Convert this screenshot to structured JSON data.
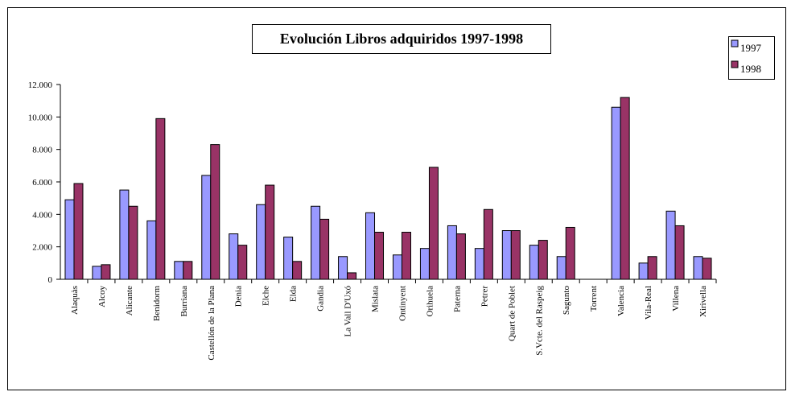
{
  "chart_data": {
    "type": "bar",
    "title": "Evolución Libros adquiridos 1997-1998",
    "categories": [
      "Alaquàs",
      "Alcoy",
      "Alicante",
      "Benidorm",
      "Burriana",
      "Castellón de la Plana",
      "Denia",
      "Elche",
      "Elda",
      "Gandia",
      "La Vall D'Uxó",
      "Mislata",
      "Ontinyent",
      "Orihuela",
      "Paterna",
      "Petrer",
      "Quart de Poblet",
      "S.Vcte. del Raspeig",
      "Sagunto",
      "Torrent",
      "Valencia",
      "Vila-Real",
      "Villena",
      "Xirivella"
    ],
    "series": [
      {
        "name": "1997",
        "color": "#9999ff",
        "values": [
          4900,
          800,
          5500,
          3600,
          1100,
          6400,
          2800,
          4600,
          2600,
          4500,
          1400,
          4100,
          1500,
          1900,
          3300,
          1900,
          3000,
          2100,
          1400,
          0,
          10600,
          1000,
          4200,
          1400
        ]
      },
      {
        "name": "1998",
        "color": "#993366",
        "values": [
          5900,
          900,
          4500,
          9900,
          1100,
          8300,
          2100,
          5800,
          1100,
          3700,
          400,
          2900,
          2900,
          6900,
          2800,
          4300,
          3000,
          2400,
          3200,
          0,
          11200,
          1400,
          3300,
          1300
        ]
      }
    ],
    "ylim": [
      0,
      12000
    ],
    "yticks": [
      0,
      {
        "value": 2000,
        "label": "2.000"
      },
      {
        "value": 4000,
        "label": "4.000"
      },
      {
        "value": 6000,
        "label": "6.000"
      },
      {
        "value": 8000,
        "label": "8.000"
      },
      {
        "value": 10000,
        "label": "10.000"
      },
      {
        "value": 12000,
        "label": "12.000"
      }
    ],
    "legend": "right"
  }
}
